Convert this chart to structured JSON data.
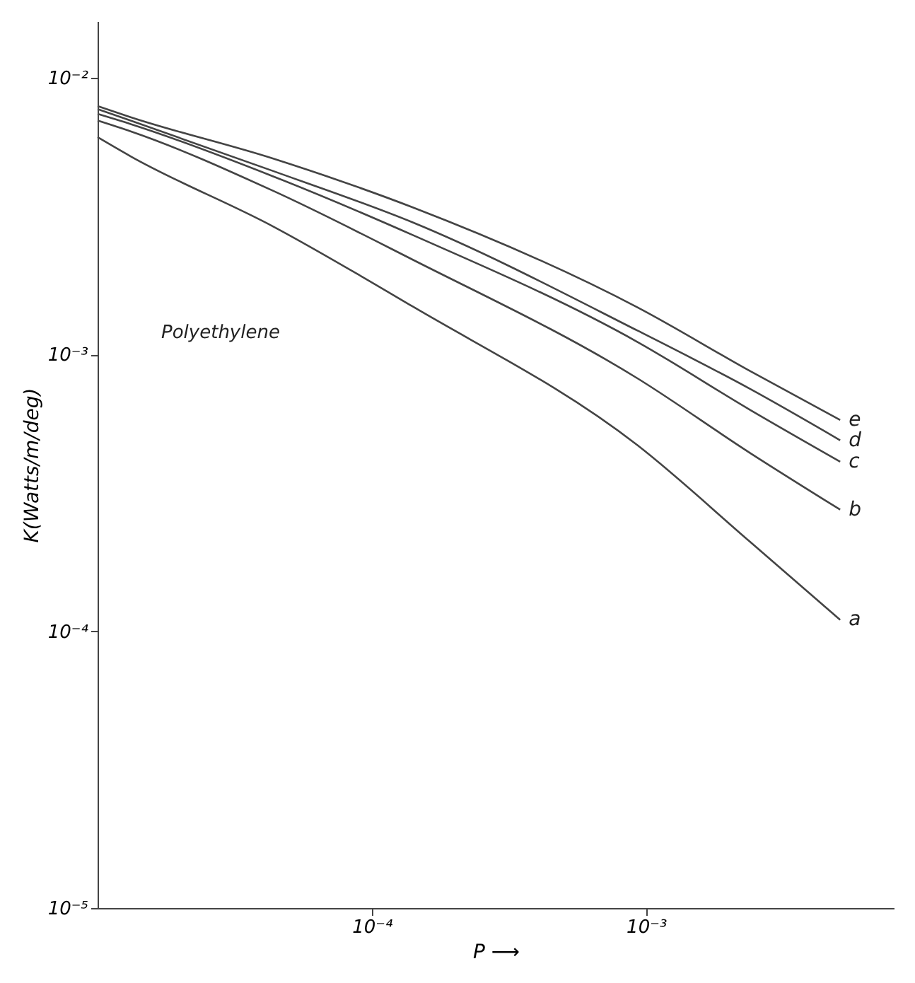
{
  "chart_data": {
    "type": "line",
    "xlabel": "P ⟶",
    "ylabel": "K(Watts/m/deg)",
    "annotations": [
      "Polyethylene"
    ],
    "x": [
      1e-05,
      1.32e-05,
      4.37e-05,
      0.000141,
      0.00093,
      0.0024,
      0.0051
    ],
    "series": [
      {
        "name": "a",
        "color": "#444444",
        "values": [
          0.0061,
          0.0052,
          0.0029,
          0.00149,
          0.00047,
          0.00021,
          0.00011
        ]
      },
      {
        "name": "b",
        "color": "#444444",
        "values": [
          0.007,
          0.0064,
          0.0039,
          0.0022,
          0.00082,
          0.00044,
          0.000275
        ]
      },
      {
        "name": "c",
        "color": "#444444",
        "values": [
          0.0074,
          0.0068,
          0.0044,
          0.0027,
          0.00111,
          0.00063,
          0.00041
        ]
      },
      {
        "name": "d",
        "color": "#444444",
        "values": [
          0.0077,
          0.007,
          0.0046,
          0.003,
          0.00122,
          0.00075,
          0.00049
        ]
      },
      {
        "name": "e",
        "color": "#444444",
        "values": [
          0.0079,
          0.0072,
          0.0051,
          0.0034,
          0.00148,
          0.00087,
          0.00058
        ]
      }
    ],
    "log": "xy",
    "grid": false,
    "legend": false,
    "marker": "none",
    "line_style": "solid",
    "xlim": [
      1e-05,
      0.008
    ],
    "ylim": [
      1e-05,
      0.016
    ],
    "xticks": [
      {
        "value": 0.0001,
        "label": "10⁻⁴"
      },
      {
        "value": 0.001,
        "label": "10⁻³"
      }
    ],
    "yticks": [
      {
        "value": 1e-05,
        "label": "10⁻⁵"
      },
      {
        "value": 0.0001,
        "label": "10⁻⁴"
      },
      {
        "value": 0.001,
        "label": "10⁻³"
      },
      {
        "value": 0.01,
        "label": "10⁻²"
      }
    ]
  }
}
